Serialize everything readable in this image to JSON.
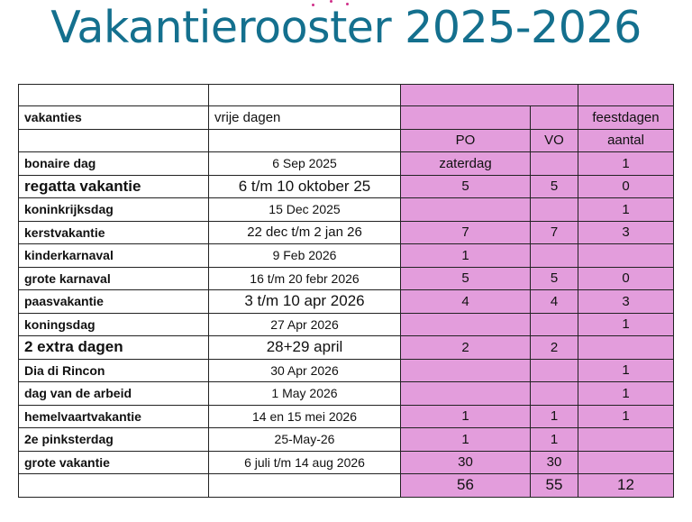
{
  "title": "Vakantierooster 2025-2026",
  "table": {
    "header": {
      "col1": "vakanties",
      "col2": "vrije dagen",
      "col5": "feestdagen",
      "po": "PO",
      "vo": "VO",
      "aantal": "aantal"
    },
    "rows": [
      {
        "name": "bonaire dag",
        "dates": "6 Sep 2025",
        "po": "zaterdag",
        "vo": "",
        "feest": "1"
      },
      {
        "name": "regatta vakantie",
        "dates": "6 t/m 10 oktober 25",
        "po": "5",
        "vo": "5",
        "feest": "0"
      },
      {
        "name": "koninkrijksdag",
        "dates": "15 Dec 2025",
        "po": "",
        "vo": "",
        "feest": "1"
      },
      {
        "name": "kerstvakantie",
        "dates": "22 dec t/m 2 jan 26",
        "po": "7",
        "vo": "7",
        "feest": "3"
      },
      {
        "name": "kinderkarnaval",
        "dates": "9 Feb 2026",
        "po": "1",
        "vo": "",
        "feest": ""
      },
      {
        "name": "grote karnaval",
        "dates": "16  t/m 20 febr 2026",
        "po": "5",
        "vo": "5",
        "feest": "0"
      },
      {
        "name": "paasvakantie",
        "dates": "3 t/m 10 apr 2026",
        "po": "4",
        "vo": "4",
        "feest": "3"
      },
      {
        "name": "koningsdag",
        "dates": "27 Apr 2026",
        "po": "",
        "vo": "",
        "feest": "1"
      },
      {
        "name": "2 extra dagen",
        "dates": "28+29 april",
        "po": "2",
        "vo": "2",
        "feest": ""
      },
      {
        "name": "Dia di Rincon",
        "dates": "30 Apr 2026",
        "po": "",
        "vo": "",
        "feest": "1"
      },
      {
        "name": "dag van de arbeid",
        "dates": "1 May 2026",
        "po": "",
        "vo": "",
        "feest": "1"
      },
      {
        "name": "hemelvaartvakantie",
        "dates": "14 en 15 mei 2026",
        "po": "1",
        "vo": "1",
        "feest": "1"
      },
      {
        "name": "2e pinksterdag",
        "dates": "25-May-26",
        "po": "1",
        "vo": "1",
        "feest": ""
      },
      {
        "name": "grote vakantie",
        "dates": "6 juli t/m 14 aug 2026",
        "po": "30",
        "vo": "30",
        "feest": ""
      }
    ],
    "totals": {
      "po": "56",
      "vo": "55",
      "feest": "12"
    }
  }
}
